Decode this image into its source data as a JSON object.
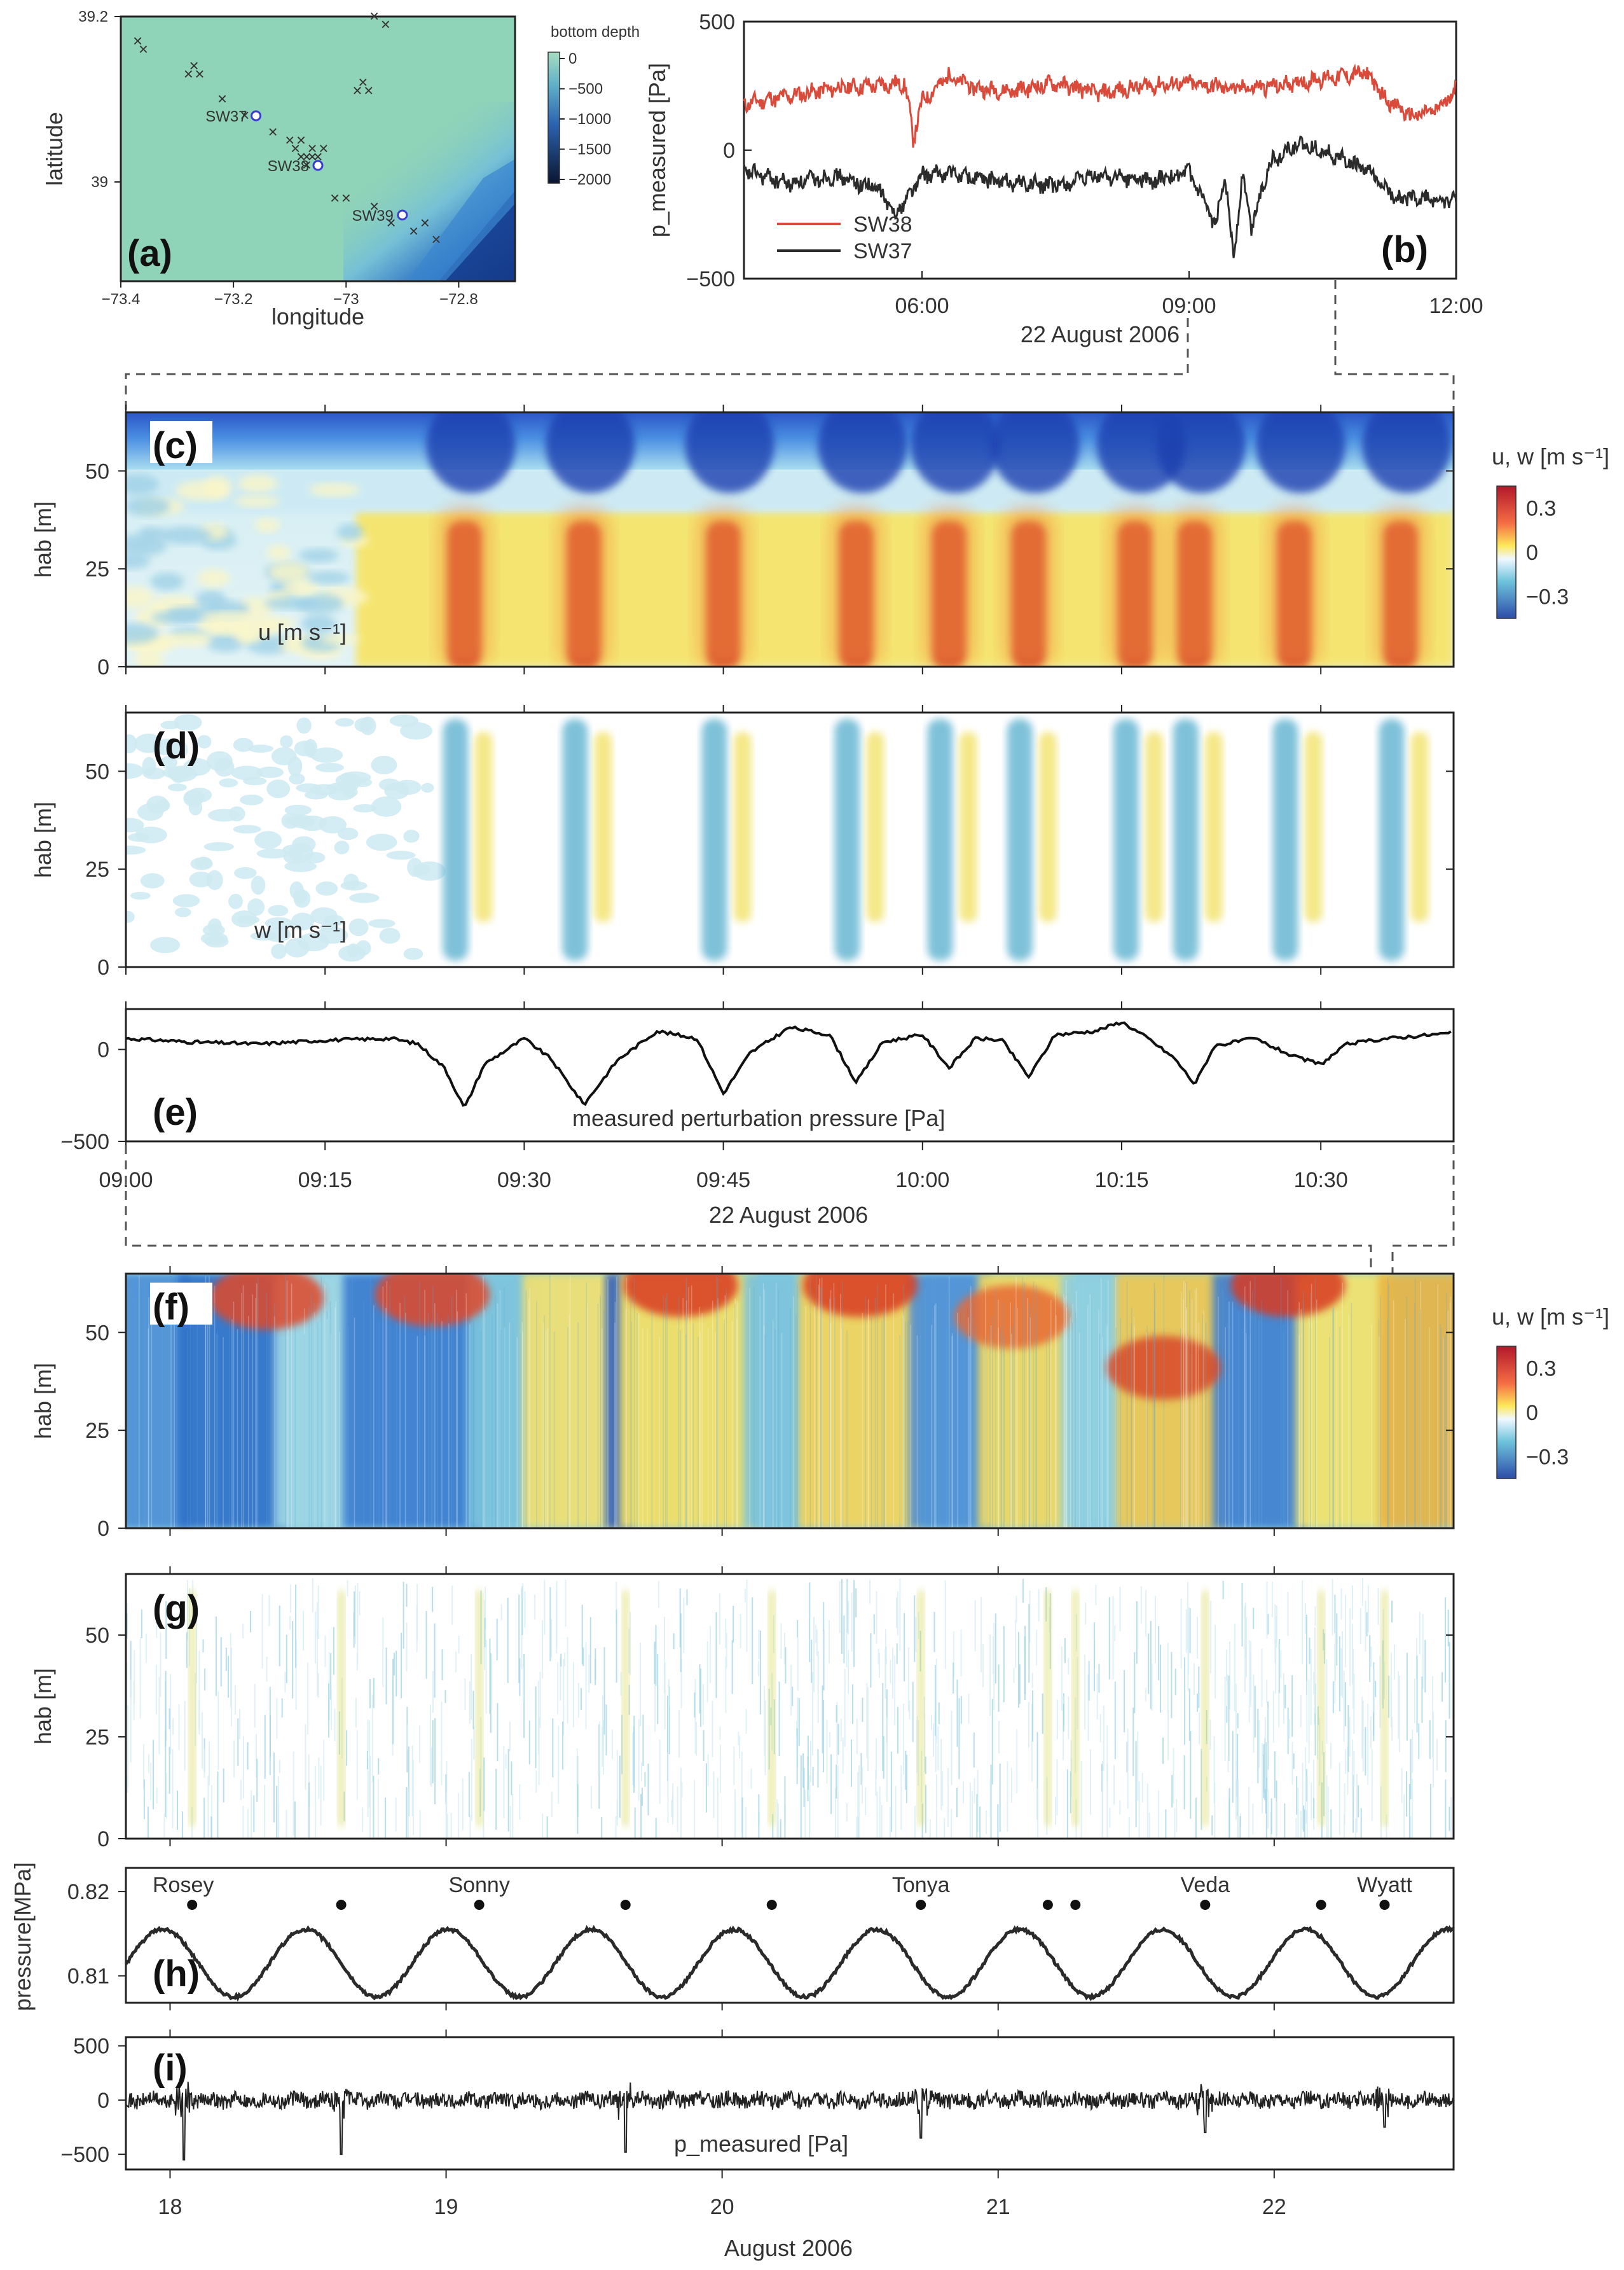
{
  "figure": {
    "date_label": "22 August 2006",
    "month_label": "August 2006"
  },
  "chart_data": [
    {
      "id": "a",
      "type": "heatmap",
      "panel_label": "(a)",
      "title": "",
      "xlabel": "longitude",
      "ylabel": "latitude",
      "xlim": [
        -73.4,
        -72.7
      ],
      "ylim": [
        38.88,
        39.2
      ],
      "xticks": [
        -73.4,
        -73.2,
        -73,
        -72.8
      ],
      "xtick_labels": [
        "−73.4",
        "−73.2",
        "−73",
        "−72.8"
      ],
      "yticks": [
        39,
        39.2
      ],
      "ytick_labels": [
        "39",
        "39.2"
      ],
      "colorbar": {
        "label": "bottom depth",
        "ticks": [
          0,
          -500,
          -1000,
          -1500,
          -2000
        ],
        "tick_labels": [
          "0",
          "−500",
          "−1000",
          "−1500",
          "−2000"
        ]
      },
      "stations": [
        {
          "name": "SW37",
          "lon": -73.16,
          "lat": 39.08
        },
        {
          "name": "SW38",
          "lon": -73.05,
          "lat": 39.02
        },
        {
          "name": "SW39",
          "lon": -72.9,
          "lat": 38.96
        }
      ],
      "moorings": [
        [
          -73.37,
          39.17
        ],
        [
          -73.36,
          39.16
        ],
        [
          -73.28,
          39.13
        ],
        [
          -73.27,
          39.14
        ],
        [
          -73.26,
          39.13
        ],
        [
          -73.22,
          39.1
        ],
        [
          -73.18,
          39.08
        ],
        [
          -73.13,
          39.06
        ],
        [
          -73.1,
          39.05
        ],
        [
          -73.09,
          39.04
        ],
        [
          -73.08,
          39.05
        ],
        [
          -73.07,
          39.03
        ],
        [
          -73.06,
          39.04
        ],
        [
          -73.07,
          39.02
        ],
        [
          -73.08,
          39.03
        ],
        [
          -73.04,
          39.04
        ],
        [
          -73.05,
          39.03
        ],
        [
          -73.06,
          39.03
        ],
        [
          -73.02,
          38.98
        ],
        [
          -73.0,
          38.98
        ],
        [
          -72.98,
          39.11
        ],
        [
          -72.97,
          39.12
        ],
        [
          -72.96,
          39.11
        ],
        [
          -72.95,
          39.2
        ],
        [
          -72.93,
          39.19
        ],
        [
          -72.95,
          38.97
        ],
        [
          -72.92,
          38.95
        ],
        [
          -72.88,
          38.94
        ],
        [
          -72.86,
          38.95
        ],
        [
          -72.84,
          38.93
        ]
      ]
    },
    {
      "id": "b",
      "type": "line",
      "panel_label": "(b)",
      "title": "",
      "xlabel": "22 August 2006",
      "ylabel": "p_measured [Pa]",
      "xlim": [
        4.0,
        12.0
      ],
      "ylim": [
        -500,
        500
      ],
      "xticks": [
        6,
        9,
        12
      ],
      "xtick_labels": [
        "06:00",
        "09:00",
        "12:00"
      ],
      "yticks": [
        -500,
        0,
        500
      ],
      "ytick_labels": [
        "−500",
        "0",
        "500"
      ],
      "legend_position": "bottom-left",
      "series": [
        {
          "name": "SW38",
          "color": "#d94a3a",
          "x": [
            4.0,
            4.5,
            5.0,
            5.4,
            5.8,
            5.85,
            5.9,
            6.0,
            6.3,
            6.6,
            7.0,
            7.5,
            8.0,
            8.5,
            9.0,
            9.5,
            10.0,
            10.5,
            11.0,
            11.2,
            11.5,
            11.8,
            12.0
          ],
          "y": [
            180,
            210,
            240,
            250,
            260,
            180,
            40,
            190,
            290,
            240,
            230,
            260,
            220,
            250,
            260,
            240,
            250,
            280,
            300,
            200,
            130,
            160,
            240
          ]
        },
        {
          "name": "SW37",
          "color": "#2b2b2b",
          "x": [
            4.0,
            4.5,
            5.0,
            5.5,
            5.7,
            5.9,
            6.0,
            6.3,
            6.8,
            7.5,
            8.0,
            8.6,
            9.0,
            9.3,
            9.4,
            9.5,
            9.6,
            9.7,
            9.9,
            10.2,
            10.5,
            11.0,
            11.3,
            11.6,
            12.0
          ],
          "y": [
            -80,
            -130,
            -100,
            -150,
            -250,
            -150,
            -100,
            -90,
            -120,
            -140,
            -100,
            -120,
            -90,
            -300,
            -80,
            -420,
            -100,
            -300,
            -50,
            20,
            0,
            -80,
            -180,
            -190,
            -200
          ]
        }
      ]
    },
    {
      "id": "c",
      "type": "heatmap",
      "panel_label": "(c)",
      "annotation": "u [m s⁻¹]",
      "ylabel": "hab [m]",
      "ylim": [
        0,
        65
      ],
      "yticks": [
        0,
        25,
        50
      ],
      "ytick_labels": [
        "0",
        "25",
        "50"
      ],
      "xlim": [
        0,
        100
      ],
      "xlabel": "",
      "colorbar": {
        "label": "u, w [m s⁻¹]",
        "ticks": [
          0.3,
          0,
          -0.3
        ],
        "tick_labels": [
          "0.3",
          "0",
          "−0.3"
        ]
      },
      "wave_times_min": [
        25.5,
        34.5,
        45.0,
        55.0,
        62.0,
        68.0,
        76.0,
        80.5,
        88.0,
        96.0
      ]
    },
    {
      "id": "d",
      "type": "heatmap",
      "panel_label": "(d)",
      "annotation": "w [m s⁻¹]",
      "ylabel": "hab [m]",
      "ylim": [
        0,
        65
      ],
      "yticks": [
        0,
        25,
        50
      ],
      "ytick_labels": [
        "0",
        "25",
        "50"
      ],
      "xlim": [
        0,
        100
      ],
      "xlabel": "",
      "wave_times_min": [
        25.5,
        34.5,
        45.0,
        55.0,
        62.0,
        68.0,
        76.0,
        80.5,
        88.0,
        96.0
      ]
    },
    {
      "id": "e",
      "type": "line",
      "panel_label": "(e)",
      "annotation": "measured perturbation pressure [Pa]",
      "xlabel": "22 August 2006",
      "ylabel": "",
      "xlim": [
        0,
        100
      ],
      "ylim": [
        -500,
        220
      ],
      "xticks": [
        0,
        15,
        30,
        45,
        60,
        75,
        90
      ],
      "xtick_labels": [
        "09:00",
        "09:15",
        "09:30",
        "09:45",
        "10:00",
        "10:15",
        "10:30"
      ],
      "yticks": [
        -500,
        0
      ],
      "ytick_labels": [
        "−500",
        "0"
      ],
      "series": [
        {
          "name": "perturbation pressure",
          "color": "#111111",
          "x": [
            0,
            5,
            10,
            15,
            20,
            22,
            24,
            25.5,
            27,
            30,
            32,
            34.5,
            37,
            40,
            43,
            45,
            47,
            50,
            53,
            55,
            57,
            60,
            62,
            64,
            66,
            68,
            70,
            73,
            75,
            77,
            79,
            80.5,
            82,
            85,
            88,
            90,
            92,
            95,
            100
          ],
          "y": [
            60,
            40,
            30,
            50,
            60,
            30,
            -100,
            -320,
            -80,
            60,
            -50,
            -300,
            -60,
            100,
            60,
            -240,
            -20,
            120,
            80,
            -180,
            40,
            80,
            -100,
            60,
            50,
            -150,
            80,
            100,
            150,
            60,
            -50,
            -190,
            20,
            60,
            -40,
            -80,
            30,
            60,
            90
          ]
        }
      ]
    },
    {
      "id": "f",
      "type": "heatmap",
      "panel_label": "(f)",
      "ylabel": "hab [m]",
      "ylim": [
        0,
        65
      ],
      "yticks": [
        0,
        25,
        50
      ],
      "ytick_labels": [
        "0",
        "25",
        "50"
      ],
      "xlim": [
        17.84,
        22.65
      ],
      "colorbar": {
        "label": "u, w [m s⁻¹]",
        "ticks": [
          0.3,
          0,
          -0.3
        ],
        "tick_labels": [
          "0.3",
          "0",
          "−0.3"
        ]
      }
    },
    {
      "id": "g",
      "type": "heatmap",
      "panel_label": "(g)",
      "ylabel": "hab [m]",
      "ylim": [
        0,
        65
      ],
      "yticks": [
        0,
        25,
        50
      ],
      "ytick_labels": [
        "0",
        "25",
        "50"
      ],
      "xlim": [
        17.84,
        22.65
      ],
      "event_days": [
        18.08,
        18.62,
        19.12,
        19.65,
        20.18,
        20.72,
        21.18,
        21.28,
        21.75,
        22.17,
        22.4
      ]
    },
    {
      "id": "h",
      "type": "line",
      "panel_label": "(h)",
      "ylabel": "pressure[MPa]",
      "xlim": [
        17.84,
        22.65
      ],
      "ylim": [
        0.8068,
        0.8228
      ],
      "yticks": [
        0.81,
        0.82
      ],
      "ytick_labels": [
        "0.81",
        "0.82"
      ],
      "tide_mean": 0.8115,
      "tide_amplitude": 0.004,
      "tide_period_days": 0.5175,
      "tide_phase_day": 18.49,
      "named_storms": [
        {
          "name": "Rosey",
          "day": 18.08
        },
        {
          "name": "Sonny",
          "day": 19.12
        },
        {
          "name": "Tonya",
          "day": 20.72
        },
        {
          "name": "Veda",
          "day": 21.75
        },
        {
          "name": "Wyatt",
          "day": 22.4
        }
      ],
      "event_markers": [
        18.08,
        18.62,
        19.12,
        19.65,
        20.18,
        20.72,
        21.18,
        21.28,
        21.75,
        22.17,
        22.4
      ]
    },
    {
      "id": "i",
      "type": "line",
      "panel_label": "(i)",
      "annotation": "p_measured [Pa]",
      "xlabel": "August 2006",
      "ylabel": "",
      "xlim": [
        17.84,
        22.65
      ],
      "ylim": [
        -640,
        580
      ],
      "xticks": [
        18,
        19,
        20,
        21,
        22
      ],
      "xtick_labels": [
        "18",
        "19",
        "20",
        "21",
        "22"
      ],
      "yticks": [
        -500,
        0,
        500
      ],
      "ytick_labels": [
        "−500",
        "0",
        "500"
      ],
      "spike_days": [
        18.05,
        18.62,
        19.65,
        20.72,
        21.75,
        22.4
      ],
      "spike_values": [
        -550,
        -500,
        -480,
        -350,
        -300,
        -250
      ]
    }
  ]
}
